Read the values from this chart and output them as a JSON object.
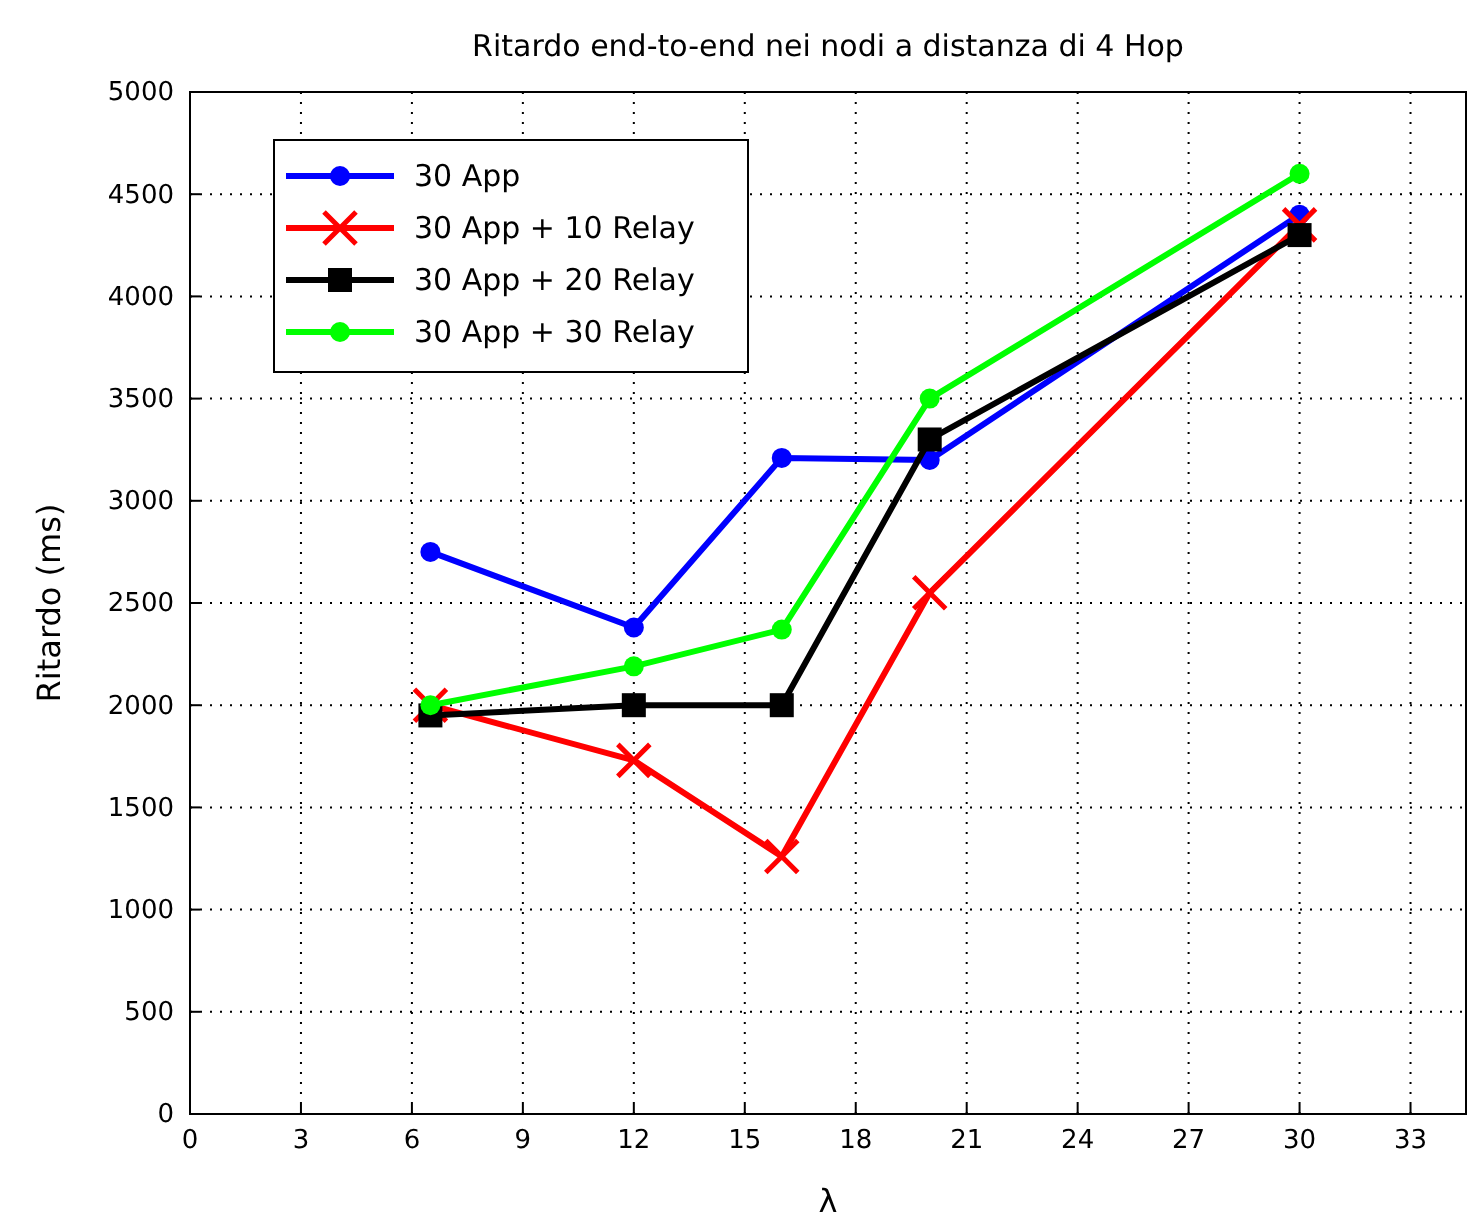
{
  "chart_data": {
    "type": "line",
    "title": "Ritardo end-to-end nei nodi a distanza di 4 Hop",
    "xlabel": "λ",
    "ylabel": "Ritardo (ms)",
    "xlim": [
      0,
      34.5
    ],
    "xticks": [
      0,
      3,
      6,
      9,
      12,
      15,
      18,
      21,
      24,
      27,
      30,
      33
    ],
    "ylim": [
      0,
      5000
    ],
    "yticks": [
      0,
      500,
      1000,
      1500,
      2000,
      2500,
      3000,
      3500,
      4000,
      4500,
      5000
    ],
    "grid": true,
    "legend": "top left",
    "line_style": "solid",
    "x": [
      6.5,
      12,
      16,
      20,
      30
    ],
    "series": [
      {
        "name": "30 App",
        "color": "#0000ff",
        "marker": "circle",
        "values": [
          2750,
          2380,
          3210,
          3200,
          4400
        ]
      },
      {
        "name": "30 App + 10 Relay",
        "color": "#ff0000",
        "marker": "cross",
        "values": [
          2000,
          1730,
          1260,
          2550,
          4350
        ]
      },
      {
        "name": "30 App + 20 Relay",
        "color": "#000000",
        "marker": "square",
        "values": [
          1950,
          2000,
          2000,
          3300,
          4300
        ]
      },
      {
        "name": "30 App + 30 Relay",
        "color": "#00ff00",
        "marker": "circle",
        "values": [
          2000,
          2190,
          2370,
          3500,
          4600
        ]
      }
    ]
  }
}
